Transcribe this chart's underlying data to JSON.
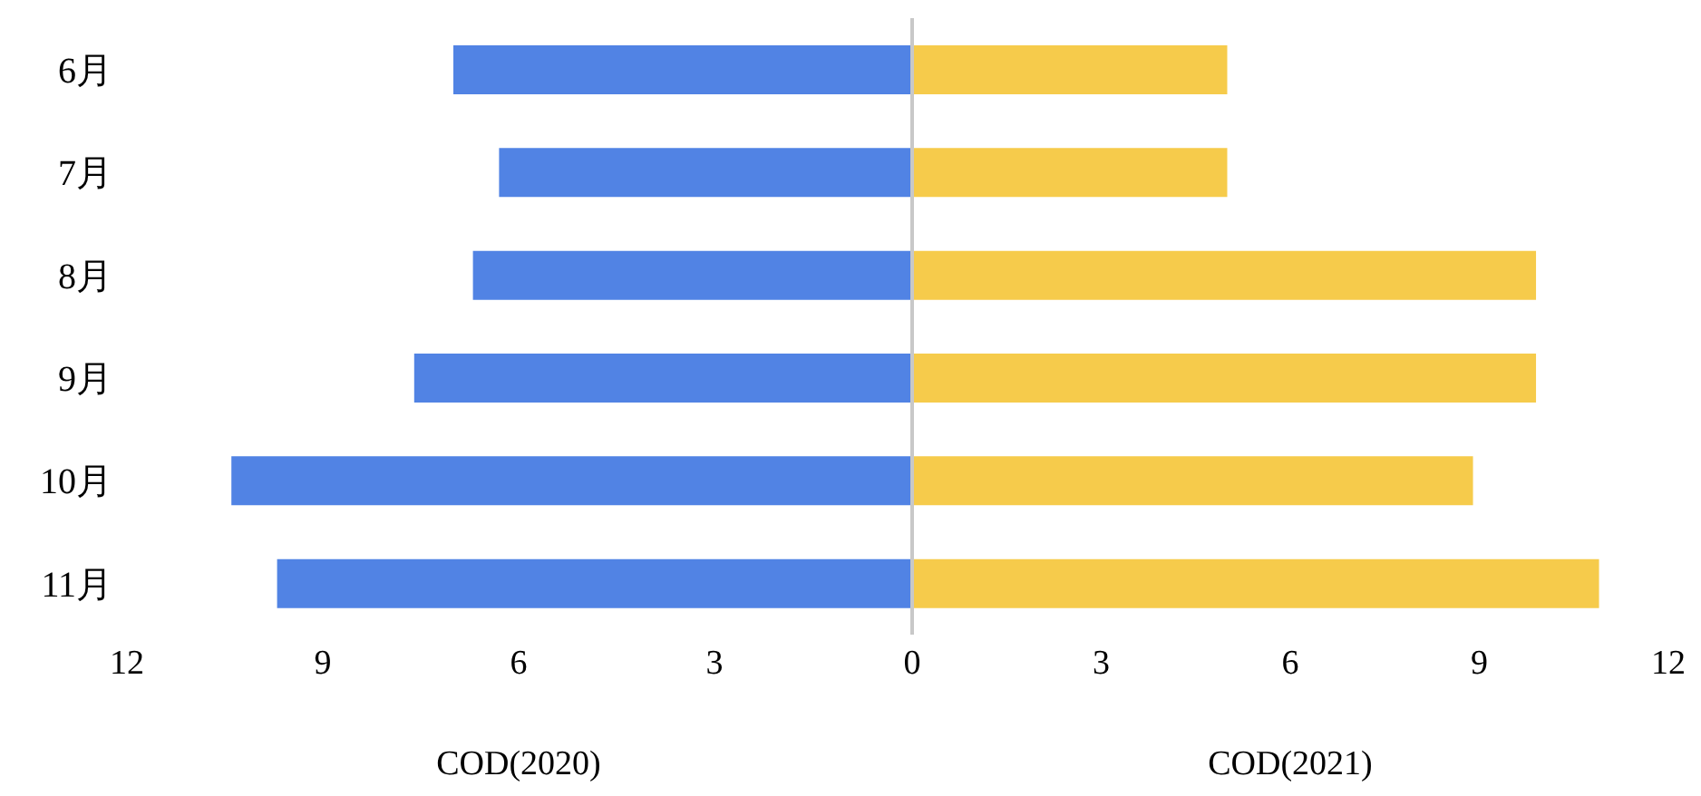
{
  "chart_data": [
    {
      "type": "bar",
      "orientation": "horizontal",
      "categories": [
        "6月",
        "7月",
        "8月",
        "9月",
        "10月",
        "11月"
      ],
      "values": [
        7.0,
        6.3,
        6.7,
        7.6,
        10.4,
        9.7
      ],
      "color": "#5183e4",
      "xlim": [
        12,
        0
      ],
      "xticks": [
        12,
        9,
        6,
        3
      ],
      "xlabel": "COD(2020)",
      "grid": false
    },
    {
      "type": "bar",
      "orientation": "horizontal",
      "categories": [
        null,
        null,
        null,
        null,
        null,
        null
      ],
      "values": [
        5.0,
        5.0,
        9.9,
        9.9,
        8.9,
        10.9
      ],
      "color": "#f6cb4b",
      "xlim": [
        0,
        12
      ],
      "xticks": [
        0,
        3,
        6,
        9,
        12
      ],
      "xlabel": "COD(2021)",
      "tick_labels": "x",
      "grid": false
    }
  ]
}
